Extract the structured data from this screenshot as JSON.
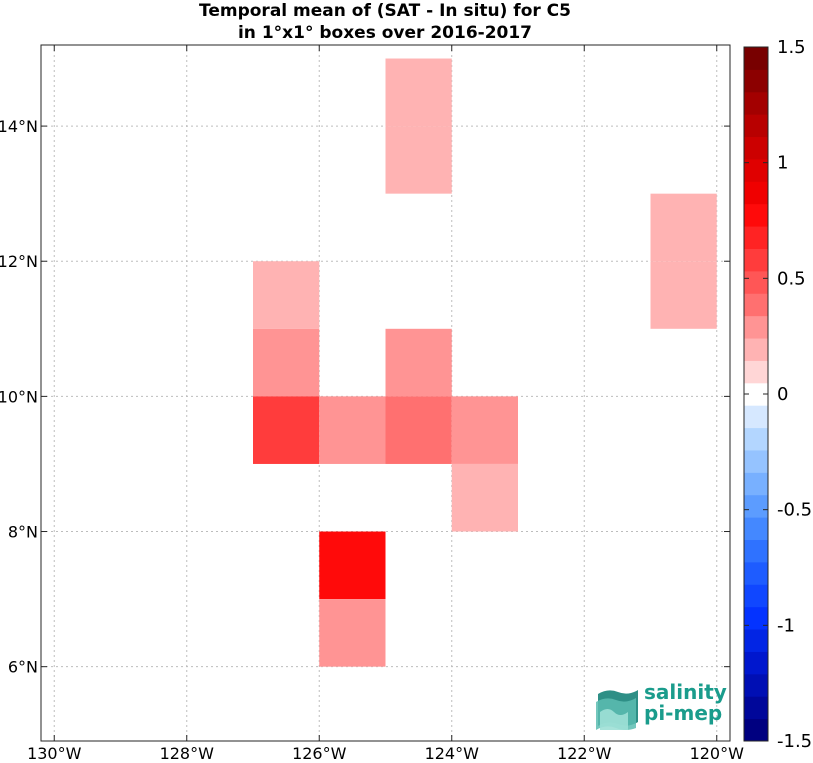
{
  "title_line1": "Temporal mean of (SAT - In situ) for C5",
  "title_line2": "in 1°x1° boxes over 2016-2017",
  "logo": {
    "line1": "salinity",
    "line2": "pi-mep"
  },
  "chart_data": {
    "type": "heatmap",
    "title": "Temporal mean of (SAT - In situ) for C5 in 1°x1° boxes over 2016-2017",
    "xlabel": "",
    "ylabel": "",
    "xlim": [
      -130.2,
      -119.8
    ],
    "ylim": [
      4.9,
      15.2
    ],
    "grid": true,
    "x_ticks": [
      -130,
      -128,
      -126,
      -124,
      -122,
      -120
    ],
    "x_tick_labels": [
      "130°W",
      "128°W",
      "126°W",
      "124°W",
      "122°W",
      "120°W"
    ],
    "y_ticks": [
      6,
      8,
      10,
      12,
      14
    ],
    "y_tick_labels": [
      "6°N",
      "8°N",
      "10°N",
      "12°N",
      "14°N"
    ],
    "cells": [
      {
        "lon": -125,
        "lat": 14,
        "value": 0.2
      },
      {
        "lon": -125,
        "lat": 13,
        "value": 0.2
      },
      {
        "lon": -121,
        "lat": 12,
        "value": 0.2
      },
      {
        "lon": -121,
        "lat": 11,
        "value": 0.2
      },
      {
        "lon": -127,
        "lat": 11,
        "value": 0.2
      },
      {
        "lon": -127,
        "lat": 10,
        "value": 0.3
      },
      {
        "lon": -125,
        "lat": 10,
        "value": 0.3
      },
      {
        "lon": -127,
        "lat": 9,
        "value": 0.55
      },
      {
        "lon": -126,
        "lat": 9,
        "value": 0.3
      },
      {
        "lon": -125,
        "lat": 9,
        "value": 0.4
      },
      {
        "lon": -124,
        "lat": 9,
        "value": 0.3
      },
      {
        "lon": -124,
        "lat": 8,
        "value": 0.2
      },
      {
        "lon": -126,
        "lat": 7,
        "value": 0.8
      },
      {
        "lon": -126,
        "lat": 6,
        "value": 0.3
      }
    ],
    "colorbar": {
      "min": -1.5,
      "max": 1.5,
      "ticks": [
        1.5,
        1,
        0.5,
        0,
        -0.5,
        -1,
        -1.5
      ],
      "tick_labels": [
        "1.5",
        "1",
        "0.5",
        "0",
        "-0.5",
        "-1",
        "-1.5"
      ],
      "colors": [
        "#000080",
        "#00079a",
        "#000fb4",
        "#0017ce",
        "#0225e4",
        "#0433ff",
        "#1047ff",
        "#1e5cff",
        "#2f72ff",
        "#4488ff",
        "#5c9cff",
        "#78b0ff",
        "#95c3ff",
        "#b3d6ff",
        "#d6e8ff",
        "#ffffff",
        "#ffd6d6",
        "#ffb3b3",
        "#ff9494",
        "#ff7070",
        "#ff5656",
        "#ff3c3c",
        "#ff2323",
        "#ff0a0a",
        "#f00000",
        "#e00000",
        "#cc0000",
        "#b80000",
        "#a30000",
        "#8c0000",
        "#780000"
      ]
    }
  }
}
